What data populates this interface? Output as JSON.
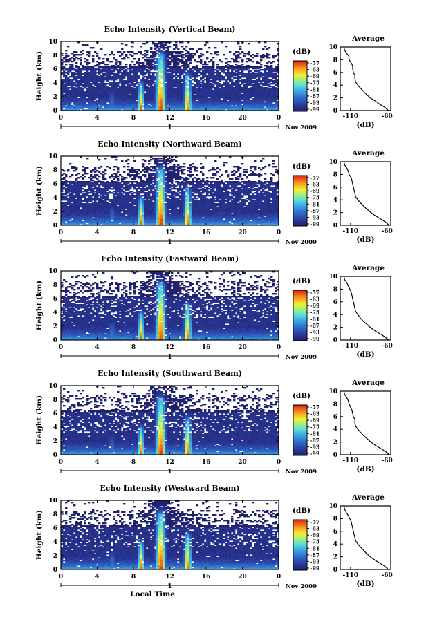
{
  "chart_data": [
    {
      "type": "heatmap",
      "title": "Echo Intensity (Vertical Beam)",
      "ylabel": "Height (km)",
      "yticks": [
        "0",
        "2",
        "4",
        "6",
        "8",
        "10"
      ],
      "xticks": [
        "0",
        "4",
        "8",
        "12",
        "16",
        "20",
        "0"
      ],
      "ylim": [
        0,
        10
      ],
      "xlim": [
        0,
        24
      ],
      "day_label": "1",
      "month_label": "Nov 2009",
      "colorbar": {
        "unit": "(dB)",
        "ticks": [
          "-57",
          "-63",
          "-69",
          "-75",
          "-81",
          "-87",
          "-93",
          "-99"
        ]
      },
      "average_profile": {
        "title": "Average",
        "xlabel": "(dB)",
        "xticks": [
          "-110",
          "-60"
        ],
        "yticks": [
          "0",
          "2",
          "4",
          "6",
          "8",
          "10"
        ],
        "height_km": [
          0,
          0.5,
          1,
          1.5,
          2,
          2.5,
          3,
          3.5,
          4,
          4.5,
          5,
          5.5,
          6,
          6.5,
          7,
          7.5,
          8,
          8.5,
          9,
          9.5,
          10
        ],
        "db": [
          -58,
          -63,
          -70,
          -76,
          -83,
          -88,
          -92,
          -96,
          -100,
          -103,
          -104,
          -104,
          -106,
          -107,
          -107,
          -109,
          -112,
          -112,
          -115,
          -118,
          -119
        ]
      }
    },
    {
      "type": "heatmap",
      "title": "Echo Intensity (Northward Beam)",
      "ylabel": "Height (km)",
      "yticks": [
        "0",
        "2",
        "4",
        "6",
        "8",
        "10"
      ],
      "xticks": [
        "0",
        "4",
        "8",
        "12",
        "16",
        "20",
        "0"
      ],
      "ylim": [
        0,
        10
      ],
      "xlim": [
        0,
        24
      ],
      "day_label": "1",
      "month_label": "Nov 2009",
      "colorbar": {
        "unit": "(dB)",
        "ticks": [
          "-57",
          "-63",
          "-69",
          "-75",
          "-81",
          "-87",
          "-93",
          "-99"
        ]
      },
      "average_profile": {
        "title": "Average",
        "xlabel": "(dB)",
        "xticks": [
          "-110",
          "-60"
        ],
        "yticks": [
          "0",
          "2",
          "4",
          "6",
          "8",
          "10"
        ],
        "height_km": [
          0,
          0.5,
          1,
          1.5,
          2,
          2.5,
          3,
          3.5,
          4,
          4.5,
          5,
          5.5,
          6,
          6.5,
          7,
          7.5,
          8,
          8.5,
          9,
          9.5,
          10
        ],
        "db": [
          -57,
          -62,
          -69,
          -76,
          -82,
          -87,
          -92,
          -96,
          -100,
          -103,
          -104,
          -105,
          -106,
          -107,
          -108,
          -109,
          -112,
          -113,
          -115,
          -118,
          -119
        ]
      }
    },
    {
      "type": "heatmap",
      "title": "Echo Intensity (Eastward Beam)",
      "ylabel": "Height (km)",
      "yticks": [
        "0",
        "2",
        "4",
        "6",
        "8",
        "10"
      ],
      "xticks": [
        "0",
        "4",
        "8",
        "12",
        "16",
        "20",
        "0"
      ],
      "ylim": [
        0,
        10
      ],
      "xlim": [
        0,
        24
      ],
      "day_label": "1",
      "month_label": "Nov 2009",
      "colorbar": {
        "unit": "(dB)",
        "ticks": [
          "-57",
          "-63",
          "-69",
          "-75",
          "-81",
          "-87",
          "-93",
          "-99"
        ]
      },
      "average_profile": {
        "title": "Average",
        "xlabel": "(dB)",
        "xticks": [
          "-110",
          "-60"
        ],
        "yticks": [
          "0",
          "2",
          "4",
          "6",
          "8",
          "10"
        ],
        "height_km": [
          0,
          0.5,
          1,
          1.5,
          2,
          2.5,
          3,
          3.5,
          4,
          4.5,
          5,
          5.5,
          6,
          6.5,
          7,
          7.5,
          8,
          8.5,
          9,
          9.5,
          10
        ],
        "db": [
          -58,
          -63,
          -70,
          -77,
          -83,
          -88,
          -93,
          -97,
          -100,
          -103,
          -104,
          -105,
          -106,
          -107,
          -108,
          -109,
          -111,
          -113,
          -115,
          -118,
          -119
        ]
      }
    },
    {
      "type": "heatmap",
      "title": "Echo Intensity (Southward Beam)",
      "ylabel": "Height (km)",
      "yticks": [
        "0",
        "2",
        "4",
        "6",
        "8",
        "10"
      ],
      "xticks": [
        "0",
        "4",
        "8",
        "12",
        "16",
        "20",
        "0"
      ],
      "ylim": [
        0,
        10
      ],
      "xlim": [
        0,
        24
      ],
      "day_label": "1",
      "month_label": "Nov 2009",
      "colorbar": {
        "unit": "(dB)",
        "ticks": [
          "-57",
          "-63",
          "-69",
          "-75",
          "-81",
          "-87",
          "-93",
          "-99"
        ]
      },
      "average_profile": {
        "title": "Average",
        "xlabel": "(dB)",
        "xticks": [
          "-110",
          "-60"
        ],
        "yticks": [
          "0",
          "2",
          "4",
          "6",
          "8",
          "10"
        ],
        "height_km": [
          0,
          0.5,
          1,
          1.5,
          2,
          2.5,
          3,
          3.5,
          4,
          4.5,
          5,
          5.5,
          6,
          6.5,
          7,
          7.5,
          8,
          8.5,
          9,
          9.5,
          10
        ],
        "db": [
          -57,
          -62,
          -69,
          -76,
          -82,
          -87,
          -92,
          -96,
          -100,
          -103,
          -104,
          -104,
          -106,
          -107,
          -108,
          -110,
          -112,
          -113,
          -115,
          -118,
          -119
        ]
      }
    },
    {
      "type": "heatmap",
      "title": "Echo Intensity (Westward Beam)",
      "ylabel": "Height (km)",
      "yticks": [
        "0",
        "2",
        "4",
        "6",
        "8",
        "10"
      ],
      "xticks": [
        "0",
        "4",
        "8",
        "12",
        "16",
        "20",
        "0"
      ],
      "ylim": [
        0,
        10
      ],
      "xlim": [
        0,
        24
      ],
      "day_label": "1",
      "month_label": "Nov 2009",
      "xlabel": "Local Time",
      "colorbar": {
        "unit": "(dB)",
        "ticks": [
          "-57",
          "-63",
          "-69",
          "-75",
          "-81",
          "-87",
          "-93",
          "-99"
        ]
      },
      "average_profile": {
        "title": "Average",
        "xlabel": "(dB)",
        "xticks": [
          "-110",
          "-60"
        ],
        "yticks": [
          "0",
          "2",
          "4",
          "6",
          "8",
          "10"
        ],
        "height_km": [
          0,
          0.5,
          1,
          1.5,
          2,
          2.5,
          3,
          3.5,
          4,
          4.5,
          5,
          5.5,
          6,
          6.5,
          7,
          7.5,
          8,
          8.5,
          9,
          9.5,
          10
        ],
        "db": [
          -58,
          -63,
          -70,
          -77,
          -83,
          -88,
          -92,
          -96,
          -100,
          -103,
          -104,
          -105,
          -106,
          -107,
          -108,
          -109,
          -111,
          -113,
          -116,
          -118,
          -119
        ]
      }
    }
  ]
}
